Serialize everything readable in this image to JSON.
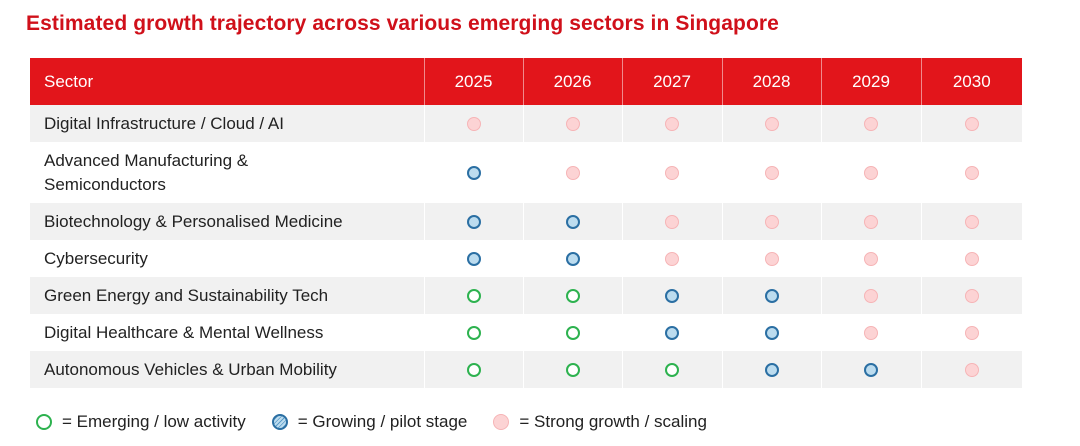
{
  "title": "Estimated growth trajectory across various emerging sectors in Singapore",
  "table": {
    "sector_header": "Sector",
    "years": [
      "2025",
      "2026",
      "2027",
      "2028",
      "2029",
      "2030"
    ],
    "rows": [
      {
        "sector": "Digital Infrastructure / Cloud / AI",
        "stages": [
          "strong",
          "strong",
          "strong",
          "strong",
          "strong",
          "strong"
        ]
      },
      {
        "sector": "Advanced Manufacturing & Semiconductors",
        "stages": [
          "growing",
          "strong",
          "strong",
          "strong",
          "strong",
          "strong"
        ]
      },
      {
        "sector": "Biotechnology & Personalised Medicine",
        "stages": [
          "growing",
          "growing",
          "strong",
          "strong",
          "strong",
          "strong"
        ]
      },
      {
        "sector": "Cybersecurity",
        "stages": [
          "growing",
          "growing",
          "strong",
          "strong",
          "strong",
          "strong"
        ]
      },
      {
        "sector": "Green Energy and Sustainability Tech",
        "stages": [
          "emerging",
          "emerging",
          "growing",
          "growing",
          "strong",
          "strong"
        ]
      },
      {
        "sector": "Digital Healthcare & Mental Wellness",
        "stages": [
          "emerging",
          "emerging",
          "growing",
          "growing",
          "strong",
          "strong"
        ]
      },
      {
        "sector": "Autonomous Vehicles & Urban Mobility",
        "stages": [
          "emerging",
          "emerging",
          "emerging",
          "growing",
          "growing",
          "strong"
        ]
      }
    ]
  },
  "legend": {
    "emerging": "= Emerging / low activity",
    "growing": "= Growing / pilot stage",
    "strong": "= Strong growth / scaling"
  },
  "colors": {
    "title": "#d0101a",
    "header_bg": "#e2151b",
    "emerging": "#2db24f",
    "growing": "#2b6fa3",
    "strong": "#fcd3d4"
  },
  "icons": {
    "emerging": "green-hollow-circle-icon",
    "growing": "blue-hatched-circle-icon",
    "strong": "pink-filled-circle-icon"
  }
}
